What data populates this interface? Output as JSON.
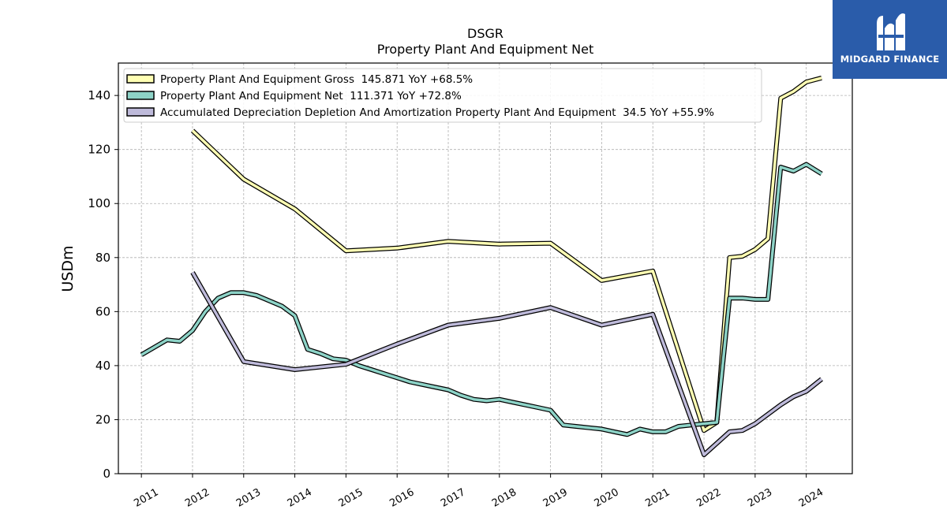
{
  "brand": {
    "name": "MIDGARD FINANCE",
    "bg_color": "#2a5caa"
  },
  "chart_data": {
    "type": "line",
    "title": "DSGR",
    "subtitle": "Property Plant And Equipment Net",
    "xlabel": "",
    "ylabel": "USDm",
    "xlim": [
      2010.55,
      2024.9
    ],
    "ylim": [
      0,
      152
    ],
    "x_ticks": [
      2011,
      2012,
      2013,
      2014,
      2015,
      2016,
      2017,
      2018,
      2019,
      2020,
      2021,
      2022,
      2023,
      2024
    ],
    "y_ticks": [
      0,
      20,
      40,
      60,
      80,
      100,
      120,
      140
    ],
    "grid": true,
    "legend_position": "top-left",
    "series": [
      {
        "name": "Property Plant And Equipment Gross  145.871 YoY +68.5%",
        "color": "#ffffb3",
        "points": [
          [
            2012.0,
            127
          ],
          [
            2013.0,
            109
          ],
          [
            2014.0,
            98
          ],
          [
            2015.0,
            82.5
          ],
          [
            2016.0,
            83.5
          ],
          [
            2017.0,
            86
          ],
          [
            2018.0,
            85
          ],
          [
            2019.0,
            85.3
          ],
          [
            2020.0,
            71.5
          ],
          [
            2021.0,
            75
          ],
          [
            2022.0,
            16
          ],
          [
            2022.25,
            19
          ],
          [
            2022.5,
            80
          ],
          [
            2022.75,
            80.5
          ],
          [
            2023.0,
            83
          ],
          [
            2023.25,
            87
          ],
          [
            2023.5,
            139
          ],
          [
            2023.75,
            141.5
          ],
          [
            2024.0,
            145
          ],
          [
            2024.3,
            146.5
          ]
        ]
      },
      {
        "name": "Property Plant And Equipment Net  111.371 YoY +72.8%",
        "color": "#8dd3c7",
        "points": [
          [
            2011.0,
            44
          ],
          [
            2011.5,
            49.5
          ],
          [
            2011.75,
            49
          ],
          [
            2012.0,
            53
          ],
          [
            2012.25,
            60
          ],
          [
            2012.5,
            65
          ],
          [
            2012.75,
            67
          ],
          [
            2013.0,
            67
          ],
          [
            2013.25,
            66
          ],
          [
            2013.5,
            64
          ],
          [
            2013.75,
            62
          ],
          [
            2014.0,
            58.5
          ],
          [
            2014.25,
            46
          ],
          [
            2014.5,
            44.5
          ],
          [
            2014.75,
            42.5
          ],
          [
            2015.0,
            42
          ],
          [
            2015.25,
            40
          ],
          [
            2015.5,
            38.5
          ],
          [
            2015.75,
            37
          ],
          [
            2016.0,
            35.5
          ],
          [
            2016.25,
            34
          ],
          [
            2016.5,
            33
          ],
          [
            2016.75,
            32
          ],
          [
            2017.0,
            31
          ],
          [
            2017.25,
            29
          ],
          [
            2017.5,
            27.5
          ],
          [
            2017.75,
            27
          ],
          [
            2018.0,
            27.5
          ],
          [
            2018.25,
            26.5
          ],
          [
            2018.5,
            25.5
          ],
          [
            2018.75,
            24.5
          ],
          [
            2019.0,
            23.5
          ],
          [
            2019.25,
            18
          ],
          [
            2019.5,
            17.5
          ],
          [
            2019.75,
            17
          ],
          [
            2020.0,
            16.5
          ],
          [
            2020.25,
            15.5
          ],
          [
            2020.5,
            14.5
          ],
          [
            2020.75,
            16.5
          ],
          [
            2021.0,
            15.5
          ],
          [
            2021.25,
            15.5
          ],
          [
            2021.5,
            17.5
          ],
          [
            2021.75,
            18
          ],
          [
            2022.0,
            18.5
          ],
          [
            2022.25,
            19
          ],
          [
            2022.5,
            65
          ],
          [
            2022.75,
            65
          ],
          [
            2023.0,
            64.5
          ],
          [
            2023.25,
            64.5
          ],
          [
            2023.5,
            113.5
          ],
          [
            2023.75,
            112
          ],
          [
            2024.0,
            114.5
          ],
          [
            2024.3,
            111
          ]
        ]
      },
      {
        "name": "Accumulated Depreciation Depletion And Amortization Property Plant And Equipment  34.5 YoY +55.9%",
        "color": "#bebada",
        "points": [
          [
            2012.0,
            74.5
          ],
          [
            2013.0,
            41.5
          ],
          [
            2014.0,
            38.5
          ],
          [
            2015.0,
            40.5
          ],
          [
            2016.0,
            48
          ],
          [
            2017.0,
            55
          ],
          [
            2018.0,
            57.5
          ],
          [
            2019.0,
            61.5
          ],
          [
            2020.0,
            55
          ],
          [
            2021.0,
            59
          ],
          [
            2022.0,
            7
          ],
          [
            2022.5,
            15.5
          ],
          [
            2022.75,
            16
          ],
          [
            2023.0,
            18.5
          ],
          [
            2023.25,
            22
          ],
          [
            2023.5,
            25.5
          ],
          [
            2023.75,
            28.5
          ],
          [
            2024.0,
            30.5
          ],
          [
            2024.3,
            35
          ]
        ]
      }
    ]
  }
}
